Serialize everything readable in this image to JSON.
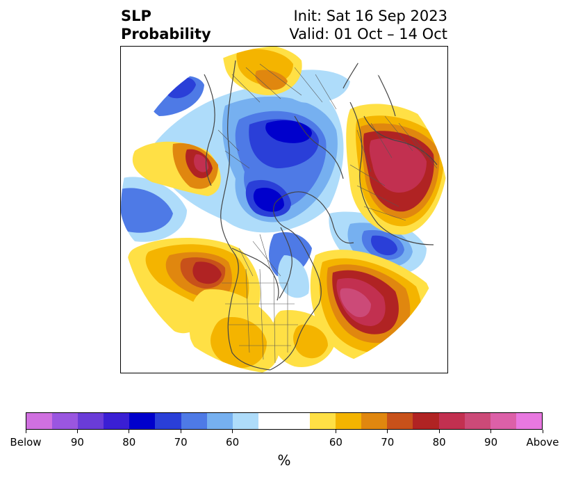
{
  "title": {
    "line1": "SLP",
    "line2": "Probability"
  },
  "info": {
    "init": "Init: Sat 16 Sep 2023",
    "valid": "Valid: 01 Oct – 14 Oct"
  },
  "colorbar": {
    "unit": "%",
    "colors": [
      "#d070e0",
      "#9a56e0",
      "#6a3cd8",
      "#3a1fd4",
      "#0000cc",
      "#2a3fd8",
      "#4e7ae6",
      "#76b0f0",
      "#aedcfa",
      "#ffffff",
      "#ffffff",
      "#ffe045",
      "#f4b400",
      "#e0870f",
      "#c8511a",
      "#b02323",
      "#c23050",
      "#cc4a78",
      "#dc60a8",
      "#e878e0"
    ],
    "ticks": [
      "Below",
      "90",
      "80",
      "70",
      "60",
      "60",
      "70",
      "80",
      "90",
      "Above"
    ]
  }
}
